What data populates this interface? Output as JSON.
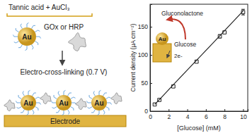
{
  "diagram": {
    "reagents": "Tannic acid + AuCl₃",
    "particle": "Au",
    "enzyme": "GOx or HRP",
    "step": "Electro-cross-linking (0.7 V)",
    "substrate": "Electrode",
    "deposited_particles": [
      "Au",
      "Au",
      "Au"
    ]
  },
  "chart_data": {
    "type": "scatter",
    "x_label": "[Glucose] (mM)",
    "y_label": "Current density (µA cm⁻²)",
    "x": [
      0.5,
      1,
      2.5,
      5,
      7.5,
      8,
      10
    ],
    "series": [
      {
        "type": "scatter",
        "marker": "square",
        "color": "#222222",
        "values": [
          12,
          20,
          44,
          88,
          133,
          140,
          176
        ],
        "errors": [
          1,
          1.5,
          2,
          2,
          3,
          2,
          5
        ]
      },
      {
        "type": "line",
        "line_style": "solid",
        "color": "#222222",
        "values": [
          12,
          20.5,
          47,
          90.5,
          134,
          143,
          178
        ]
      }
    ],
    "xlim": [
      0,
      10.5
    ],
    "ylim": [
      0,
      190
    ],
    "xticks": [
      0,
      2,
      4,
      6,
      8,
      10
    ],
    "yticks": [
      0,
      50,
      100,
      150
    ],
    "annotations": {
      "product": "Gluconolactone",
      "substrate": "Glucose",
      "electrons": "2e-",
      "particle": "Au"
    }
  }
}
